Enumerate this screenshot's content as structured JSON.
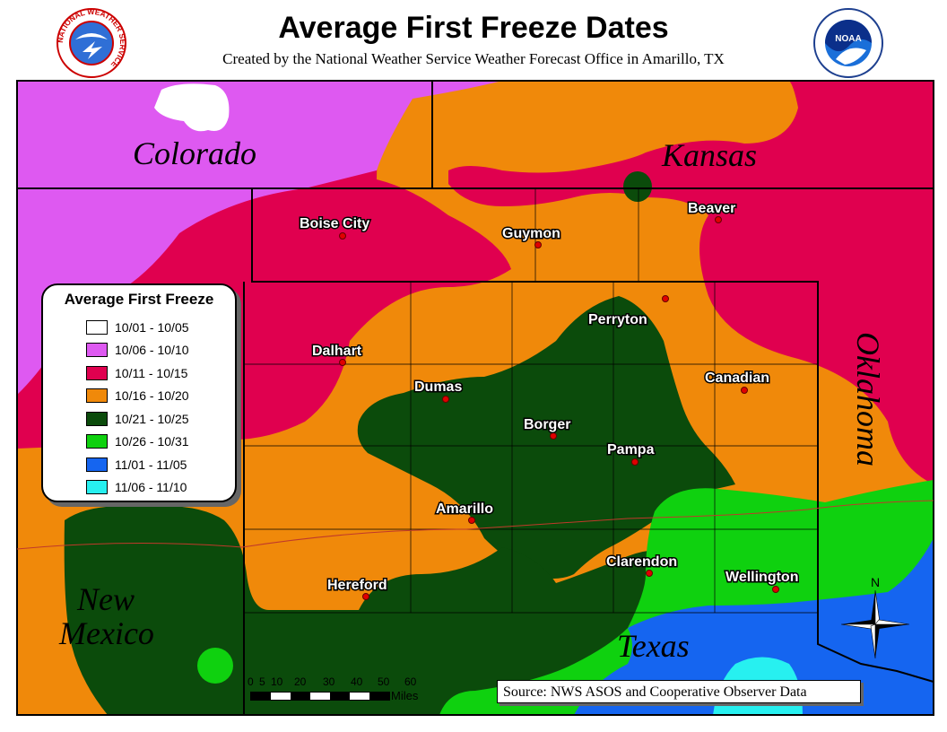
{
  "header": {
    "title": "Average First Freeze Dates",
    "subtitle": "Created by the National Weather Service Weather Forecast Office in Amarillo, TX"
  },
  "logos": {
    "nws": {
      "text": "NATIONAL WEATHER SERVICE"
    },
    "noaa": {
      "text": "NOAA"
    }
  },
  "states": {
    "colorado": "Colorado",
    "kansas": "Kansas",
    "oklahoma": "Oklahoma",
    "new_mexico_line1": "New",
    "new_mexico_line2": "Mexico",
    "texas": "Texas"
  },
  "cities": {
    "boise_city": "Boise City",
    "guymon": "Guymon",
    "beaver": "Beaver",
    "perryton": "Perryton",
    "dalhart": "Dalhart",
    "dumas": "Dumas",
    "canadian": "Canadian",
    "borger": "Borger",
    "pampa": "Pampa",
    "amarillo": "Amarillo",
    "clarendon": "Clarendon",
    "hereford": "Hereford",
    "wellington": "Wellington"
  },
  "legend": {
    "title": "Average First Freeze",
    "items": [
      {
        "label": "10/01 - 10/05",
        "color": "#ffffff"
      },
      {
        "label": "10/06 - 10/10",
        "color": "#de59f1"
      },
      {
        "label": "10/11 - 10/15",
        "color": "#e0004f"
      },
      {
        "label": "10/16 - 10/20",
        "color": "#f0890a"
      },
      {
        "label": "10/21 - 10/25",
        "color": "#0b4b0b"
      },
      {
        "label": "10/26 - 10/31",
        "color": "#0fd10f"
      },
      {
        "label": "11/01 - 11/05",
        "color": "#1565f0"
      },
      {
        "label": "11/06 - 11/10",
        "color": "#27f0f0"
      }
    ]
  },
  "scale": {
    "ticks": [
      "0",
      "5",
      "10",
      "20",
      "30",
      "40",
      "50",
      "60"
    ],
    "unit": "Miles"
  },
  "compass": {
    "north_label": "N"
  },
  "source": "Source:  NWS ASOS and Cooperative Observer Data"
}
